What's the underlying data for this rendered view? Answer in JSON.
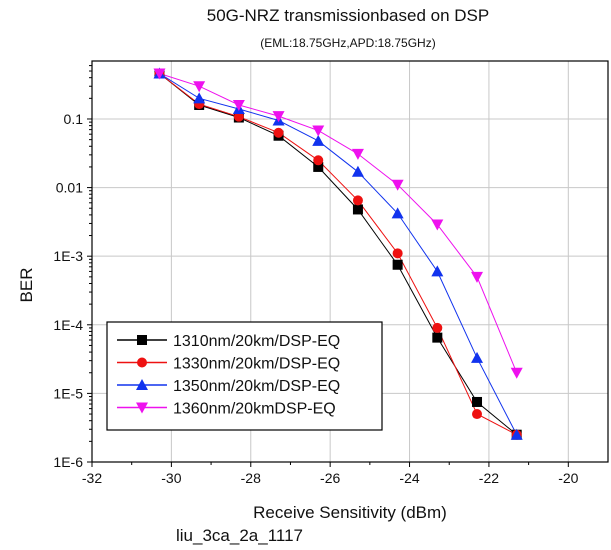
{
  "chart_data": {
    "type": "line",
    "title": "50G-NRZ transmissionbased on DSP",
    "subtitle": "(EML:18.75GHz,APD:18.75GHz)",
    "xlabel": "Receive Sensitivity (dBm)",
    "ylabel": "BER",
    "xlim": [
      -32,
      -19
    ],
    "ylim": [
      1e-06,
      0.7
    ],
    "y_scale": "log",
    "x_ticks": [
      -32,
      -30,
      -28,
      -26,
      -24,
      -22,
      -20
    ],
    "x_tick_labels": [
      "-32",
      "-30",
      "-28",
      "-26",
      "-24",
      "-22",
      "-20"
    ],
    "y_ticks": [
      0.1,
      0.01,
      0.001,
      0.0001,
      1e-05,
      1e-06
    ],
    "y_tick_labels": [
      "0.1",
      "0.01",
      "1E-3",
      "1E-4",
      "1E-5",
      "1E-6"
    ],
    "grid": true,
    "legend_position": "bottom-left",
    "series": [
      {
        "name": "1310nm/20km/DSP-EQ",
        "color": "#000000",
        "marker": "square",
        "points": [
          [
            -30.3,
            0.46
          ],
          [
            -29.3,
            0.16
          ],
          [
            -28.3,
            0.105
          ],
          [
            -27.3,
            0.057
          ],
          [
            -26.3,
            0.02
          ],
          [
            -25.3,
            0.0048
          ],
          [
            -24.3,
            0.00075
          ],
          [
            -23.3,
            6.5e-05
          ],
          [
            -22.3,
            7.5e-06
          ],
          [
            -21.3,
            2.5e-06
          ]
        ]
      },
      {
        "name": "1330nm/20km/DSP-EQ",
        "color": "#ee1111",
        "marker": "circle",
        "points": [
          [
            -30.3,
            0.46
          ],
          [
            -29.3,
            0.165
          ],
          [
            -28.3,
            0.108
          ],
          [
            -27.3,
            0.063
          ],
          [
            -26.3,
            0.025
          ],
          [
            -25.3,
            0.0065
          ],
          [
            -24.3,
            0.0011
          ],
          [
            -23.3,
            9e-05
          ],
          [
            -22.3,
            5e-06
          ],
          [
            -21.3,
            2.5e-06
          ]
        ]
      },
      {
        "name": "1350nm/20km/DSP-EQ",
        "color": "#1133ee",
        "marker": "triangle-up",
        "points": [
          [
            -30.3,
            0.46
          ],
          [
            -29.3,
            0.2
          ],
          [
            -28.3,
            0.14
          ],
          [
            -27.3,
            0.095
          ],
          [
            -26.3,
            0.048
          ],
          [
            -25.3,
            0.017
          ],
          [
            -24.3,
            0.0042
          ],
          [
            -23.3,
            0.0006
          ],
          [
            -22.3,
            3.3e-05
          ],
          [
            -21.3,
            2.5e-06
          ]
        ]
      },
      {
        "name": "1360nm/20kmDSP-EQ",
        "color": "#ee11ee",
        "marker": "triangle-down",
        "points": [
          [
            -30.3,
            0.46
          ],
          [
            -29.3,
            0.3
          ],
          [
            -28.3,
            0.16
          ],
          [
            -27.3,
            0.11
          ],
          [
            -26.3,
            0.068
          ],
          [
            -25.3,
            0.031
          ],
          [
            -24.3,
            0.011
          ],
          [
            -23.3,
            0.0029
          ],
          [
            -22.3,
            0.0005
          ],
          [
            -21.3,
            2e-05
          ]
        ]
      }
    ]
  },
  "caption": "liu_3ca_2a_1117"
}
